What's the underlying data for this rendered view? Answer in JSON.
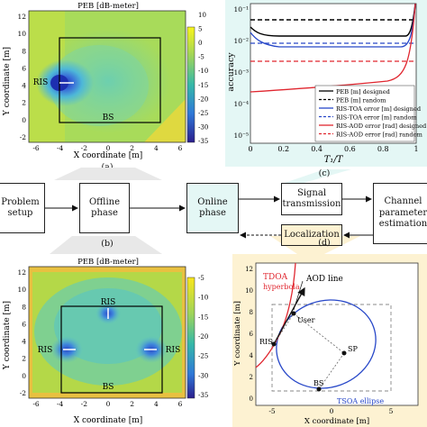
{
  "panel_a": {
    "title": "PEB [dB-meter]",
    "xlabel": "X coordinate [m]",
    "ylabel": "Y coordinate [m]",
    "x_ticks": [
      "-6",
      "-4",
      "-2",
      "0",
      "2",
      "4",
      "6"
    ],
    "y_ticks": [
      "12",
      "10",
      "8",
      "6",
      "4",
      "2",
      "0",
      "-2"
    ],
    "colorbar_ticks": [
      "10",
      "5",
      "0",
      "-5",
      "-10",
      "-15",
      "-20",
      "-25",
      "-30",
      "-35"
    ],
    "ris_label": "RIS",
    "bs_label": "BS",
    "caption": "(a)"
  },
  "panel_b": {
    "title": "PEB [dB-meter]",
    "xlabel": "X coordinate [m]",
    "ylabel": "Y coordinate [m]",
    "x_ticks": [
      "-6",
      "-4",
      "-2",
      "0",
      "2",
      "4",
      "6"
    ],
    "y_ticks": [
      "12",
      "10",
      "8",
      "6",
      "4",
      "2",
      "0",
      "-2"
    ],
    "colorbar_ticks": [
      "-5",
      "-10",
      "-15",
      "-20",
      "-25",
      "-30",
      "-35"
    ],
    "ris_top": "RIS",
    "ris_left": "RIS",
    "ris_right": "RIS",
    "bs_label": "BS",
    "caption": "(b)"
  },
  "panel_c": {
    "ylabel": "accuracy",
    "xlabel": "T₁/T",
    "x_ticks": [
      "0",
      "0.2",
      "0.4",
      "0.6",
      "0.8",
      "1"
    ],
    "y_ticks": [
      "10⁻¹",
      "10⁻²",
      "10⁻³",
      "10⁻⁴",
      "10⁻⁵"
    ],
    "legend": [
      {
        "label": "PEB [m] designed",
        "color": "#000000",
        "dash": "solid"
      },
      {
        "label": "PEB [m] random",
        "color": "#000000",
        "dash": "dashed"
      },
      {
        "label": "RIS-TOA error [m] designed",
        "color": "#2747c8",
        "dash": "solid"
      },
      {
        "label": "RIS-TOA error [m] random",
        "color": "#2747c8",
        "dash": "dashed"
      },
      {
        "label": "RIS-AOD error [rad] designed",
        "color": "#e0262f",
        "dash": "solid"
      },
      {
        "label": "RIS-AOD error [rad] random",
        "color": "#e0262f",
        "dash": "dashed"
      }
    ],
    "caption": "(c)"
  },
  "panel_d": {
    "xlabel": "X coordinate [m]",
    "ylabel": "Y coordinate [m]",
    "x_ticks": [
      "-5",
      "0",
      "5"
    ],
    "y_ticks": [
      "12",
      "10",
      "8",
      "6",
      "4",
      "2",
      "0"
    ],
    "tdoa_label": "TDOA",
    "hyperbola_label": "hyperbola",
    "aod_label": "AOD line",
    "user_label": "User",
    "ris_label": "RIS",
    "sp_label": "SP",
    "bs_label": "BS",
    "ellipse_label": "TSOA ellipse",
    "caption": "(d)"
  },
  "flow": {
    "problem_setup": "Problem\nsetup",
    "offline_phase": "Offline\nphase",
    "online_phase": "Online\nphase",
    "signal_transmission": "Signal\ntransmission",
    "channel_estimation": "Channel\nparameter\nestimation",
    "localization": "Localization"
  }
}
